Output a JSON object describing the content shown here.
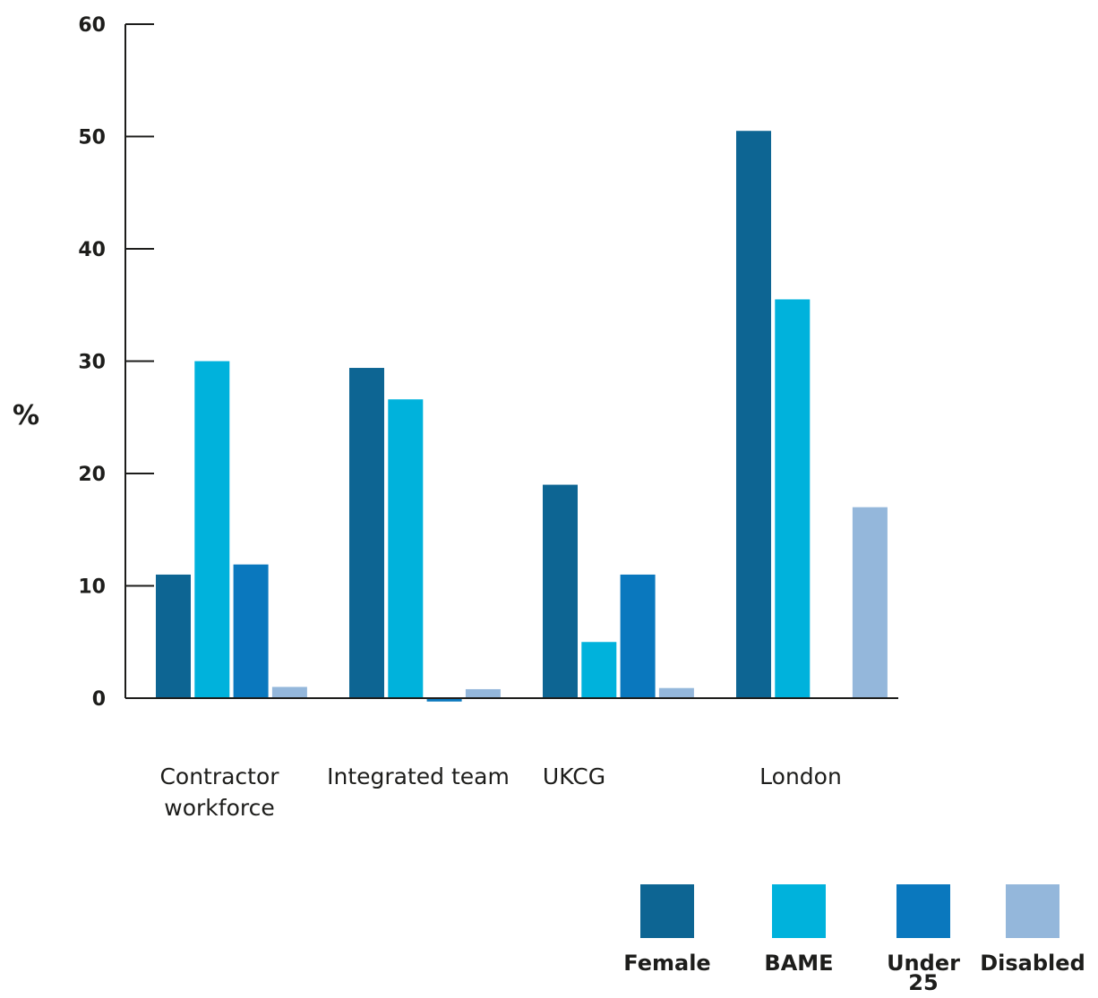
{
  "chart_data": {
    "type": "bar",
    "title": "",
    "xlabel": "",
    "ylabel": "%",
    "ylim": [
      0,
      60
    ],
    "yticks": [
      0,
      10,
      20,
      30,
      40,
      50,
      60
    ],
    "grid": false,
    "legend_position": "bottom-right",
    "categories": [
      [
        "Contractor",
        "workforce"
      ],
      [
        "Integrated team"
      ],
      [
        "UKCG"
      ],
      [
        "London"
      ]
    ],
    "series": [
      {
        "name": "Female",
        "color": "#0d6593",
        "values": [
          11,
          29.4,
          19,
          50.5
        ]
      },
      {
        "name": "BAME",
        "color": "#00b2dc",
        "values": [
          30,
          26.6,
          5,
          35.5
        ]
      },
      {
        "name": "Under 25",
        "color": "#0a78be",
        "values": [
          11.9,
          -0.3,
          11,
          null
        ]
      },
      {
        "name": "Disabled",
        "color": "#94b7db",
        "values": [
          1,
          0.8,
          0.9,
          17
        ]
      }
    ],
    "legend_labels": [
      [
        "Female"
      ],
      [
        "BAME"
      ],
      [
        "Under",
        "25"
      ],
      [
        "Disabled"
      ]
    ]
  }
}
